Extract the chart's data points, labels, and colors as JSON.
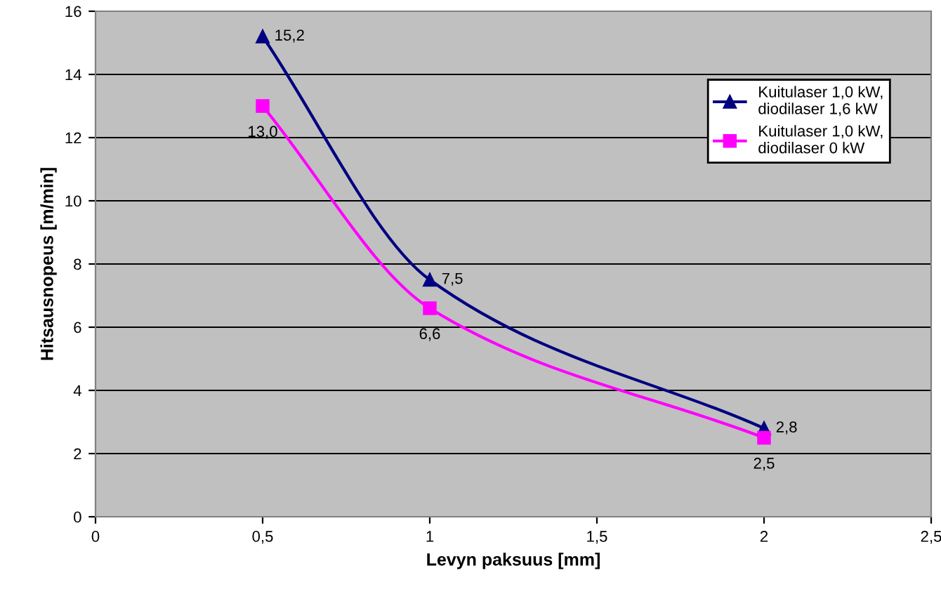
{
  "chart_data": {
    "type": "line",
    "xlabel": "Levyn paksuus [mm]",
    "ylabel": "Hitsausnopeus [m/min]",
    "x": [
      0.5,
      1,
      2
    ],
    "series": [
      {
        "name": "Kuitulaser 1,0 kW,\ndiodilaser 1,6 kW",
        "color": "#000080",
        "marker": "triangle",
        "values": [
          15.2,
          7.5,
          2.8
        ],
        "value_labels": [
          "15,2",
          "7,5",
          "2,8"
        ]
      },
      {
        "name": "Kuitulaser 1,0 kW,\ndiodilaser 0 kW",
        "color": "#ff00ff",
        "marker": "square",
        "values": [
          13.0,
          6.6,
          2.5
        ],
        "value_labels": [
          "13,0",
          "6,6",
          "2,5"
        ]
      }
    ],
    "xlim": [
      0,
      2.5
    ],
    "xticks": [
      0,
      {
        "value": 0.5,
        "label": "0,5"
      },
      1,
      {
        "value": 1.5,
        "label": "1,5"
      },
      2,
      {
        "value": 2.5,
        "label": "2,5"
      }
    ],
    "ylim": [
      0,
      16
    ],
    "yticks": [
      0,
      2,
      4,
      6,
      8,
      10,
      12,
      14,
      16
    ],
    "grid": "y",
    "legend": "top right",
    "line_style": "solid"
  }
}
